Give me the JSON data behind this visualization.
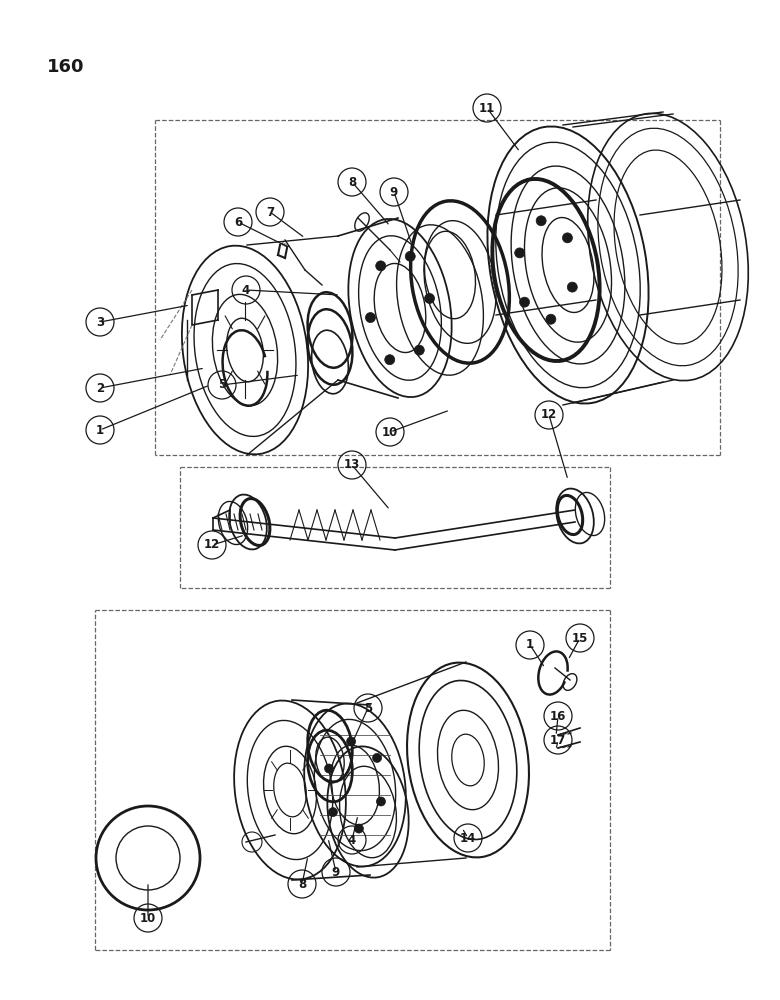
{
  "page_number": "160",
  "bg_color": "#ffffff",
  "line_color": "#1a1a1a",
  "fig_w": 7.8,
  "fig_h": 10.0,
  "dpi": 100
}
